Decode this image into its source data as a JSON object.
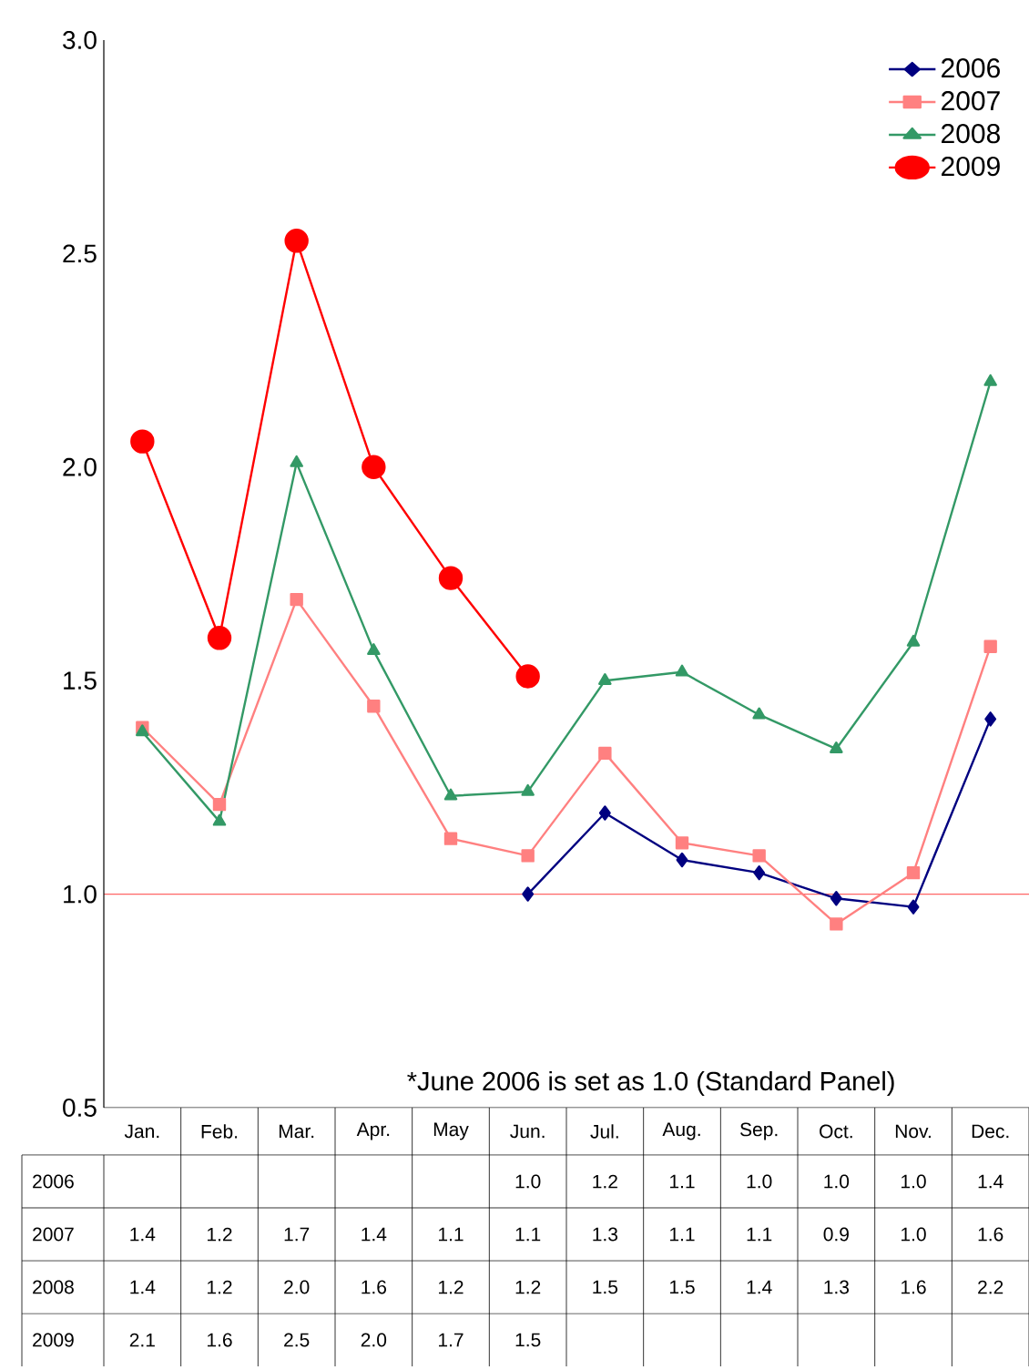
{
  "chart_data": {
    "type": "line",
    "categories": [
      "Jan.",
      "Feb.",
      "Mar.",
      "Apr.",
      "May",
      "Jun.",
      "Jul.",
      "Aug.",
      "Sep.",
      "Oct.",
      "Nov.",
      "Dec."
    ],
    "series": [
      {
        "name": "2006",
        "color": "#000080",
        "marker": "diamond",
        "values": [
          null,
          null,
          null,
          null,
          null,
          1.0,
          1.19,
          1.08,
          1.05,
          0.99,
          0.97,
          1.41
        ],
        "value_labels": [
          null,
          null,
          null,
          null,
          null,
          "1.0",
          "1.2",
          "1.1",
          "1.0",
          "1.0",
          "1.0",
          "1.4"
        ]
      },
      {
        "name": "2007",
        "color": "#ff8080",
        "marker": "square",
        "values": [
          1.39,
          1.21,
          1.69,
          1.44,
          1.13,
          1.09,
          1.33,
          1.12,
          1.09,
          0.93,
          1.05,
          1.58
        ],
        "value_labels": [
          "1.4",
          "1.2",
          "1.7",
          "1.4",
          "1.1",
          "1.1",
          "1.3",
          "1.1",
          "1.1",
          "0.9",
          "1.0",
          "1.6"
        ]
      },
      {
        "name": "2008",
        "color": "#339966",
        "marker": "triangle",
        "values": [
          1.38,
          1.17,
          2.01,
          1.57,
          1.23,
          1.24,
          1.5,
          1.52,
          1.42,
          1.34,
          1.59,
          2.2
        ],
        "value_labels": [
          "1.4",
          "1.2",
          "2.0",
          "1.6",
          "1.2",
          "1.2",
          "1.5",
          "1.5",
          "1.4",
          "1.3",
          "1.6",
          "2.2"
        ]
      },
      {
        "name": "2009",
        "color": "#ff0000",
        "marker": "circle",
        "values": [
          2.06,
          1.6,
          2.53,
          2.0,
          1.74,
          1.51,
          null,
          null,
          null,
          null,
          null,
          null
        ],
        "value_labels": [
          "2.1",
          "1.6",
          "2.5",
          "2.0",
          "1.7",
          "1.5",
          null,
          null,
          null,
          null,
          null,
          null
        ]
      }
    ],
    "ylim": [
      0.5,
      3.0
    ],
    "yticks": [
      {
        "value": 0.5,
        "label": "0.5"
      },
      {
        "value": 1.0,
        "label": "1.0"
      },
      {
        "value": 1.5,
        "label": "1.5"
      },
      {
        "value": 2.0,
        "label": "2.0"
      },
      {
        "value": 2.5,
        "label": "2.5"
      },
      {
        "value": 3.0,
        "label": "3.0"
      }
    ],
    "ref_lines": [
      {
        "axis": "y",
        "value": 1.0,
        "color": "#ff6666"
      }
    ],
    "annotations": [
      "*June 2006 is set as 1.0      (Standard Panel)"
    ],
    "grid": false,
    "legend": "top right"
  }
}
